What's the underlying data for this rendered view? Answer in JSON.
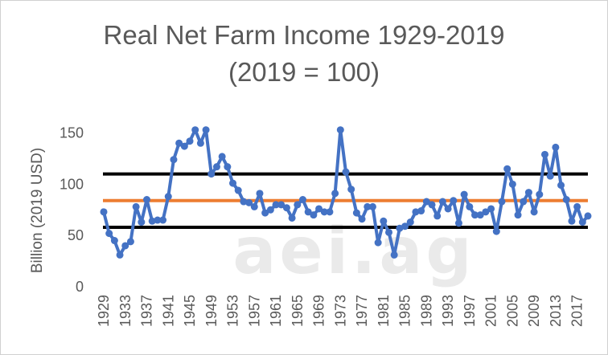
{
  "chart_data": {
    "type": "line",
    "title": "Real Net Farm Income 1929-2019",
    "subtitle": "(2019 = 100)",
    "ylabel": "Billion (2019 USD)",
    "xlabel": "",
    "ylim": [
      0,
      170
    ],
    "yticks": [
      0,
      50,
      100,
      150
    ],
    "xticks": [
      "1929",
      "1933",
      "1937",
      "1941",
      "1945",
      "1949",
      "1953",
      "1957",
      "1961",
      "1965",
      "1969",
      "1973",
      "1977",
      "1981",
      "1985",
      "1989",
      "1993",
      "1997",
      "2001",
      "2005",
      "2009",
      "2013",
      "2017"
    ],
    "grid": false,
    "watermark": "aei.ag",
    "x": [
      1929,
      1930,
      1931,
      1932,
      1933,
      1934,
      1935,
      1936,
      1937,
      1938,
      1939,
      1940,
      1941,
      1942,
      1943,
      1944,
      1945,
      1946,
      1947,
      1948,
      1949,
      1950,
      1951,
      1952,
      1953,
      1954,
      1955,
      1956,
      1957,
      1958,
      1959,
      1960,
      1961,
      1962,
      1963,
      1964,
      1965,
      1966,
      1967,
      1968,
      1969,
      1970,
      1971,
      1972,
      1973,
      1974,
      1975,
      1976,
      1977,
      1978,
      1979,
      1980,
      1981,
      1982,
      1983,
      1984,
      1985,
      1986,
      1987,
      1988,
      1989,
      1990,
      1991,
      1992,
      1993,
      1994,
      1995,
      1996,
      1997,
      1998,
      1999,
      2000,
      2001,
      2002,
      2003,
      2004,
      2005,
      2006,
      2007,
      2008,
      2009,
      2010,
      2011,
      2012,
      2013,
      2014,
      2015,
      2016,
      2017,
      2018,
      2019
    ],
    "series": [
      {
        "name": "",
        "color": "#4472c4",
        "marker": "circle",
        "values": [
          73,
          52,
          45,
          31,
          40,
          44,
          78,
          63,
          85,
          64,
          65,
          65,
          88,
          124,
          140,
          137,
          142,
          153,
          140,
          153,
          110,
          117,
          127,
          117,
          101,
          94,
          83,
          82,
          78,
          91,
          72,
          75,
          80,
          80,
          77,
          67,
          80,
          85,
          73,
          70,
          76,
          73,
          73,
          91,
          153,
          112,
          95,
          72,
          66,
          78,
          78,
          43,
          64,
          53,
          31,
          57,
          59,
          63,
          73,
          74,
          83,
          80,
          69,
          83,
          76,
          84,
          62,
          90,
          78,
          70,
          70,
          73,
          76,
          54,
          83,
          115,
          100,
          70,
          83,
          92,
          73,
          90,
          129,
          108,
          136,
          99,
          85,
          64,
          78,
          63,
          69
        ]
      }
    ],
    "reference_lines": [
      {
        "value": 110,
        "color": "#000000"
      },
      {
        "value": 84,
        "color": "#ed7d31"
      },
      {
        "value": 58,
        "color": "#000000"
      }
    ]
  }
}
